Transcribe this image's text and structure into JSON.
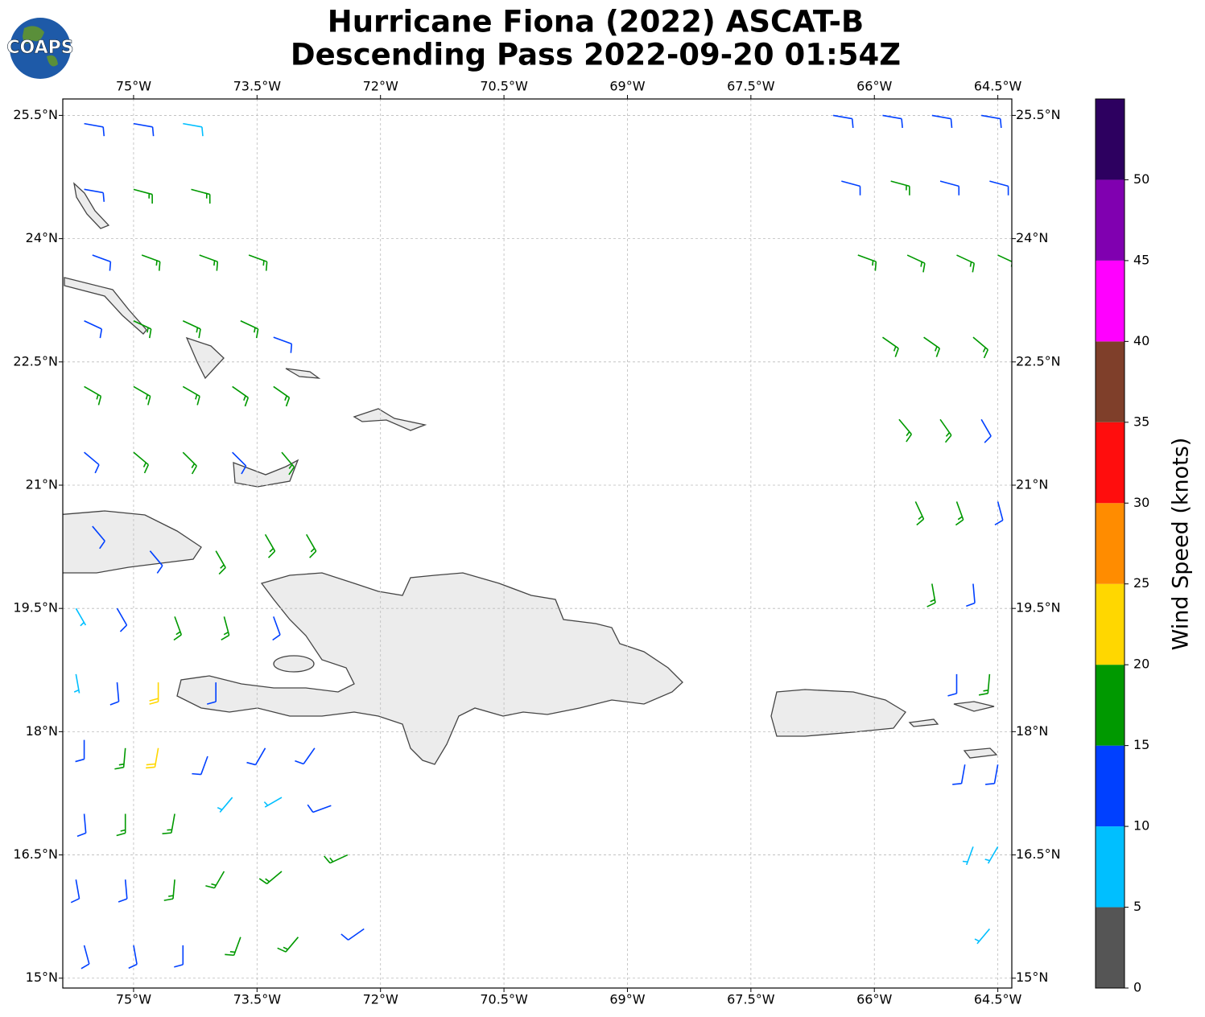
{
  "chart_data": {
    "type": "barb-map",
    "title": "Hurricane Fiona (2022) ASCAT-B",
    "subtitle": "Descending Pass 2022-09-20 01:54Z",
    "logo": "COAPS",
    "xlim": [
      -75.86,
      -64.33
    ],
    "ylim": [
      14.88,
      25.7
    ],
    "xticks": [
      {
        "value": -75,
        "label": "75°W"
      },
      {
        "value": -73.5,
        "label": "73.5°W"
      },
      {
        "value": -72,
        "label": "72°W"
      },
      {
        "value": -70.5,
        "label": "70.5°W"
      },
      {
        "value": -69,
        "label": "69°W"
      },
      {
        "value": -67.5,
        "label": "67.5°W"
      },
      {
        "value": -66,
        "label": "66°W"
      },
      {
        "value": -64.5,
        "label": "64.5°W"
      }
    ],
    "yticks": [
      {
        "value": 15,
        "label": "15°N"
      },
      {
        "value": 16.5,
        "label": "16.5°N"
      },
      {
        "value": 18,
        "label": "18°N"
      },
      {
        "value": 19.5,
        "label": "19.5°N"
      },
      {
        "value": 21,
        "label": "21°N"
      },
      {
        "value": 22.5,
        "label": "22.5°N"
      },
      {
        "value": 24,
        "label": "24°N"
      },
      {
        "value": 25.5,
        "label": "25.5°N"
      }
    ],
    "grid": true,
    "colorbar": {
      "label": "Wind Speed (knots)",
      "lim": [
        0,
        55
      ],
      "ticks": [
        0,
        5,
        10,
        15,
        20,
        25,
        30,
        35,
        40,
        45,
        50
      ],
      "levels": [
        0,
        5,
        10,
        15,
        20,
        25,
        30,
        35,
        40,
        45,
        50,
        55
      ],
      "colors": [
        "#555555",
        "#00bfff",
        "#0040ff",
        "#009900",
        "#ffd700",
        "#ff8c00",
        "#ff0d0d",
        "#7f3f2a",
        "#ff00ff",
        "#8000b0",
        "#2d0060"
      ]
    },
    "barbs": [
      [
        -75.6,
        25.4,
        12,
        100
      ],
      [
        -75.0,
        25.4,
        12,
        100
      ],
      [
        -74.4,
        25.4,
        8,
        100
      ],
      [
        -75.6,
        24.6,
        12,
        100
      ],
      [
        -75.0,
        24.6,
        15,
        105
      ],
      [
        -74.3,
        24.6,
        17,
        105
      ],
      [
        -75.5,
        23.8,
        12,
        110
      ],
      [
        -74.9,
        23.8,
        17,
        110
      ],
      [
        -74.2,
        23.8,
        17,
        110
      ],
      [
        -73.6,
        23.8,
        17,
        110
      ],
      [
        -75.6,
        23.0,
        12,
        115
      ],
      [
        -75.0,
        23.0,
        17,
        115
      ],
      [
        -74.4,
        23.0,
        17,
        115
      ],
      [
        -73.7,
        23.0,
        17,
        115
      ],
      [
        -73.3,
        22.8,
        12,
        110
      ],
      [
        -75.6,
        22.2,
        17,
        120
      ],
      [
        -75.0,
        22.2,
        17,
        120
      ],
      [
        -74.4,
        22.2,
        17,
        120
      ],
      [
        -73.8,
        22.2,
        17,
        125
      ],
      [
        -73.3,
        22.2,
        17,
        125
      ],
      [
        -75.6,
        21.4,
        12,
        130
      ],
      [
        -75.0,
        21.4,
        17,
        130
      ],
      [
        -74.4,
        21.4,
        17,
        135
      ],
      [
        -73.8,
        21.4,
        12,
        135
      ],
      [
        -73.2,
        21.4,
        17,
        140
      ],
      [
        -75.5,
        20.5,
        12,
        140
      ],
      [
        -74.8,
        20.2,
        12,
        140
      ],
      [
        -74.0,
        20.2,
        17,
        150
      ],
      [
        -73.4,
        20.4,
        17,
        150
      ],
      [
        -72.9,
        20.4,
        17,
        150
      ],
      [
        -75.7,
        19.5,
        7,
        150
      ],
      [
        -75.2,
        19.5,
        12,
        150
      ],
      [
        -74.5,
        19.4,
        17,
        160
      ],
      [
        -73.9,
        19.4,
        17,
        165
      ],
      [
        -73.3,
        19.4,
        12,
        160
      ],
      [
        -75.7,
        18.7,
        7,
        170
      ],
      [
        -75.2,
        18.6,
        12,
        175
      ],
      [
        -74.7,
        18.6,
        22,
        180
      ],
      [
        -74.0,
        18.6,
        12,
        180
      ],
      [
        -75.6,
        17.9,
        12,
        180
      ],
      [
        -75.1,
        17.8,
        17,
        185
      ],
      [
        -74.7,
        17.8,
        22,
        190
      ],
      [
        -74.1,
        17.7,
        12,
        200
      ],
      [
        -73.4,
        17.8,
        12,
        210
      ],
      [
        -72.8,
        17.8,
        12,
        215
      ],
      [
        -75.6,
        17.0,
        12,
        175
      ],
      [
        -75.1,
        17.0,
        17,
        180
      ],
      [
        -74.5,
        17.0,
        17,
        190
      ],
      [
        -73.8,
        17.2,
        7,
        220
      ],
      [
        -73.2,
        17.2,
        7,
        240
      ],
      [
        -72.6,
        17.1,
        12,
        250
      ],
      [
        -75.7,
        16.2,
        12,
        170
      ],
      [
        -75.1,
        16.2,
        12,
        175
      ],
      [
        -74.5,
        16.2,
        17,
        185
      ],
      [
        -73.9,
        16.3,
        17,
        210
      ],
      [
        -73.2,
        16.3,
        17,
        230
      ],
      [
        -72.4,
        16.5,
        17,
        245
      ],
      [
        -75.6,
        15.4,
        12,
        165
      ],
      [
        -75.0,
        15.4,
        12,
        170
      ],
      [
        -74.4,
        15.4,
        12,
        180
      ],
      [
        -73.7,
        15.5,
        17,
        200
      ],
      [
        -73.0,
        15.5,
        17,
        220
      ],
      [
        -72.2,
        15.6,
        12,
        235
      ],
      [
        -66.5,
        25.5,
        12,
        100
      ],
      [
        -65.9,
        25.5,
        12,
        100
      ],
      [
        -65.3,
        25.5,
        12,
        100
      ],
      [
        -64.7,
        25.5,
        12,
        100
      ],
      [
        -66.4,
        24.7,
        12,
        105
      ],
      [
        -65.8,
        24.7,
        17,
        105
      ],
      [
        -65.2,
        24.7,
        12,
        105
      ],
      [
        -64.6,
        24.7,
        12,
        105
      ],
      [
        -66.2,
        23.8,
        17,
        110
      ],
      [
        -65.6,
        23.8,
        17,
        115
      ],
      [
        -65.0,
        23.8,
        17,
        115
      ],
      [
        -64.5,
        23.8,
        17,
        115
      ],
      [
        -65.9,
        22.8,
        17,
        125
      ],
      [
        -65.4,
        22.8,
        17,
        125
      ],
      [
        -64.8,
        22.8,
        17,
        130
      ],
      [
        -65.7,
        21.8,
        17,
        140
      ],
      [
        -65.2,
        21.8,
        17,
        145
      ],
      [
        -64.7,
        21.8,
        12,
        150
      ],
      [
        -65.5,
        20.8,
        17,
        155
      ],
      [
        -65.0,
        20.8,
        17,
        160
      ],
      [
        -64.5,
        20.8,
        12,
        165
      ],
      [
        -65.3,
        19.8,
        17,
        170
      ],
      [
        -64.8,
        19.8,
        12,
        175
      ],
      [
        -65.0,
        18.7,
        12,
        180
      ],
      [
        -64.6,
        18.7,
        17,
        185
      ],
      [
        -64.9,
        17.6,
        12,
        190
      ],
      [
        -64.5,
        17.6,
        12,
        190
      ],
      [
        -64.8,
        16.6,
        7,
        200
      ],
      [
        -64.5,
        16.6,
        7,
        210
      ],
      [
        -64.6,
        15.6,
        7,
        220
      ]
    ]
  }
}
